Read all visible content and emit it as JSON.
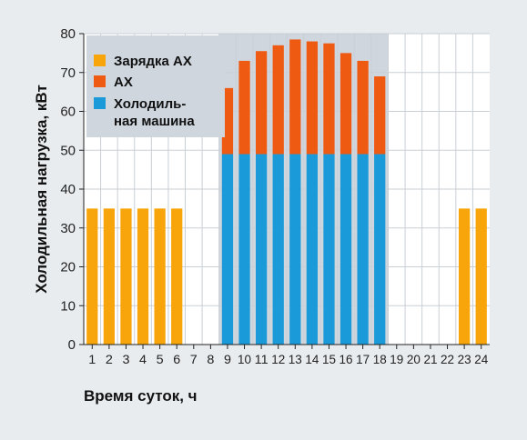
{
  "chart_data": {
    "type": "bar",
    "stacked": true,
    "xlabel": "Время суток, ч",
    "ylabel": "Холодильная нагрузка, кВт",
    "ylim": [
      0,
      80
    ],
    "yticks": [
      0,
      10,
      20,
      30,
      40,
      50,
      60,
      70,
      80
    ],
    "categories": [
      "1",
      "2",
      "3",
      "4",
      "5",
      "6",
      "7",
      "8",
      "9",
      "10",
      "11",
      "12",
      "13",
      "14",
      "15",
      "16",
      "17",
      "18",
      "19",
      "20",
      "21",
      "22",
      "23",
      "24"
    ],
    "shaded_period": {
      "from": "9",
      "to": "18"
    },
    "grid": true,
    "legend_position": "top-left",
    "series": [
      {
        "key": "charge",
        "name": "Зарядка АХ",
        "color": "#f7a50a",
        "values": [
          35,
          35,
          35,
          35,
          35,
          35,
          0,
          0,
          0,
          0,
          0,
          0,
          0,
          0,
          0,
          0,
          0,
          0,
          0,
          0,
          0,
          0,
          35,
          35
        ]
      },
      {
        "key": "chiller",
        "name": "Холодиль-\nная машина",
        "color": "#1a9ad8",
        "values": [
          0,
          0,
          0,
          0,
          0,
          0,
          0,
          0,
          49,
          49,
          49,
          49,
          49,
          49,
          49,
          49,
          49,
          49,
          0,
          0,
          0,
          0,
          0,
          0
        ]
      },
      {
        "key": "ax",
        "name": "АХ",
        "color": "#ef5a12",
        "values": [
          0,
          0,
          0,
          0,
          0,
          0,
          0,
          0,
          17,
          24,
          26.5,
          28,
          29.5,
          29,
          28.5,
          26,
          24,
          20,
          0,
          0,
          0,
          0,
          0,
          0
        ]
      }
    ],
    "legend_order": [
      "charge",
      "ax",
      "chiller"
    ]
  },
  "colors": {
    "background": "#e9ecef",
    "plot_background": "#ffffff",
    "shaded_background": "#cfd6de",
    "grid": "#c9cfd6",
    "axis": "#222222"
  }
}
